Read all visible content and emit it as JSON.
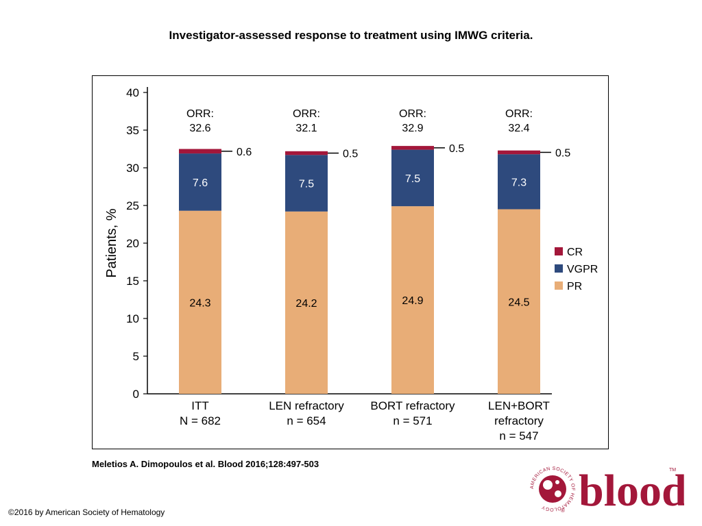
{
  "slide": {
    "title": "Investigator-assessed response to treatment using IMWG criteria.",
    "citation": "Meletios A. Dimopoulos et al. Blood 2016;128:497-503",
    "copyright": "©2016 by American Society of Hematology",
    "logo": {
      "word": "blood",
      "ring_text": "AMERICAN SOCIETY OF HEMATOLOGY",
      "tm": "TM",
      "registered": "®"
    }
  },
  "chart_data": {
    "type": "bar",
    "stacked": true,
    "categories": [
      [
        "ITT",
        "N = 682"
      ],
      [
        "LEN refractory",
        "n = 654"
      ],
      [
        "BORT refractory",
        "n = 571"
      ],
      [
        "LEN+BORT",
        "refractory",
        "n = 547"
      ]
    ],
    "series": [
      {
        "name": "PR",
        "color": "#e8ad77",
        "values": [
          24.3,
          24.2,
          24.9,
          24.5
        ]
      },
      {
        "name": "VGPR",
        "color": "#2e4a7d",
        "values": [
          7.6,
          7.5,
          7.5,
          7.3
        ]
      },
      {
        "name": "CR",
        "color": "#a3173a",
        "values": [
          0.6,
          0.5,
          0.5,
          0.5
        ]
      }
    ],
    "totals_label": "ORR:",
    "totals": [
      "32.6",
      "32.1",
      "32.9",
      "32.4"
    ],
    "ylabel": "Patients, %",
    "ylim": [
      0,
      40
    ],
    "yticks": [
      0,
      5,
      10,
      15,
      20,
      25,
      30,
      35,
      40
    ],
    "legend": {
      "position": "right",
      "order": [
        "CR",
        "VGPR",
        "PR"
      ]
    },
    "grid": false
  }
}
